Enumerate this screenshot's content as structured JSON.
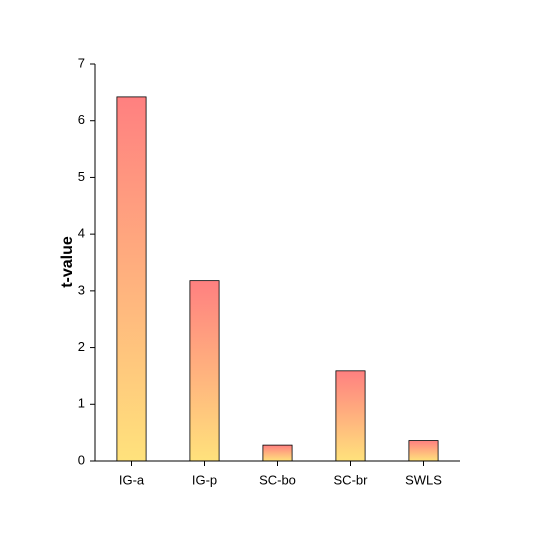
{
  "chart_data": {
    "type": "bar",
    "y_label": "t-value",
    "categories": [
      "IG-a",
      "IG-p",
      "SC-bo",
      "SC-br",
      "SWLS"
    ],
    "values": [
      6.42,
      3.18,
      0.28,
      1.59,
      0.36
    ],
    "gradient": [
      "#ff8080",
      "#ffe27c"
    ],
    "edge_color": "#000000",
    "ylim": [
      0,
      7
    ],
    "yticks": [
      0,
      1,
      2,
      3,
      4,
      5,
      6,
      7
    ],
    "grid": false
  }
}
